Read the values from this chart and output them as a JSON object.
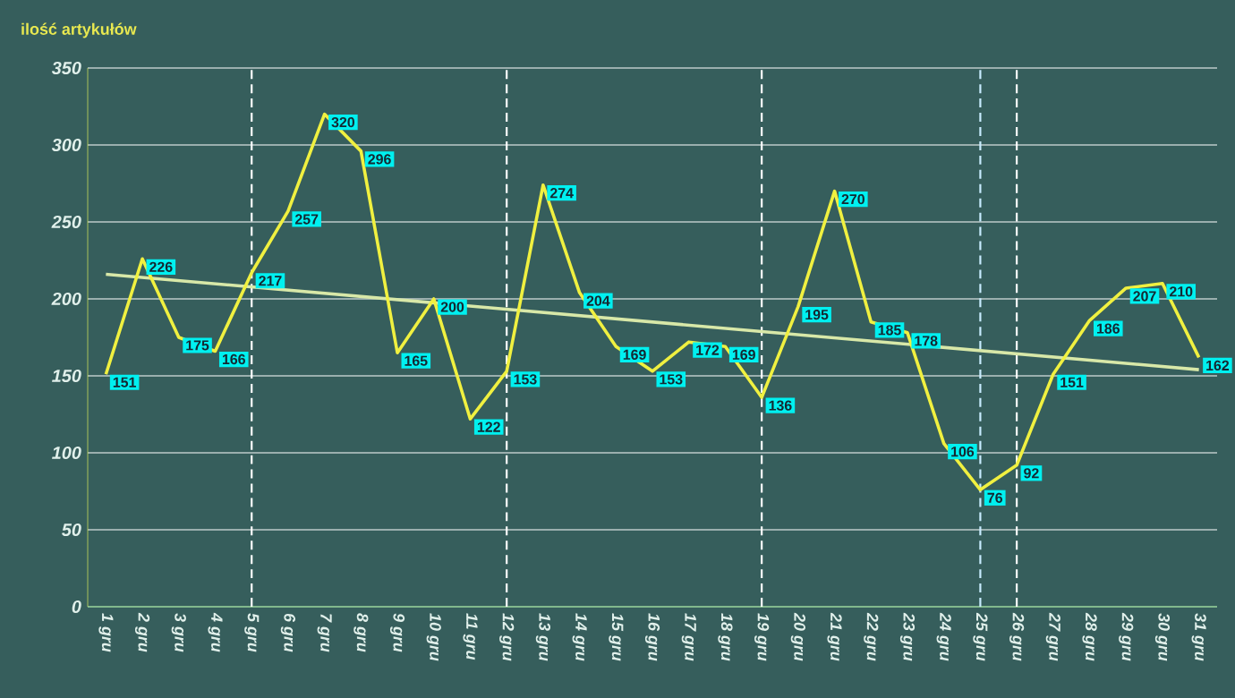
{
  "chart_data": {
    "type": "line",
    "ylabel": "ilość artykułów",
    "grid": "y",
    "categories": [
      "1 gru",
      "2 gru",
      "3 gru",
      "4 gru",
      "5 gru",
      "6 gru",
      "7 gru",
      "8 gru",
      "9 gru",
      "10 gru",
      "11 gru",
      "12 gru",
      "13 gru",
      "14 gru",
      "15 gru",
      "16 gru",
      "17 gru",
      "18 gru",
      "19 gru",
      "20 gru",
      "21 gru",
      "22 gru",
      "23 gru",
      "24 gru",
      "25 gru",
      "26 gru",
      "27 gru",
      "28 gru",
      "29 gru",
      "30 gru",
      "31 gru"
    ],
    "series": [
      {
        "color": "#f0f040",
        "values": [
          151,
          226,
          175,
          166,
          217,
          257,
          320,
          296,
          165,
          200,
          122,
          153,
          274,
          204,
          169,
          153,
          172,
          169,
          136,
          195,
          270,
          185,
          178,
          106,
          76,
          92,
          151,
          186,
          207,
          210,
          162
        ],
        "value_labels": [
          "151",
          "226",
          "175",
          "166",
          "217",
          "257",
          "320",
          "296",
          "165",
          "200",
          "122",
          "153",
          "274",
          "204",
          "169",
          "153",
          "172",
          "169",
          "136",
          "195",
          "270",
          "185",
          "178",
          "106",
          "76",
          "92",
          "151",
          "186",
          "207",
          "210",
          "162"
        ]
      },
      {
        "type": "line",
        "x": [
          "1 gru",
          "31 gru"
        ],
        "values": [
          216,
          154
        ],
        "color": "#d8e8a8"
      }
    ],
    "ylim": [
      0,
      350
    ],
    "yticks": [
      0,
      50,
      100,
      150,
      200,
      250,
      300,
      350
    ],
    "ref_lines": [
      {
        "axis": "x",
        "value": "5 gru",
        "color": "#ffffff",
        "line_style": "dashed"
      },
      {
        "axis": "x",
        "value": "12 gru",
        "color": "#ffffff",
        "line_style": "dashed"
      },
      {
        "axis": "x",
        "value": "19 gru",
        "color": "#ffffff",
        "line_style": "dashed"
      },
      {
        "axis": "x",
        "value": "25 gru",
        "color": "#c8ecff",
        "line_style": "dashed"
      },
      {
        "axis": "x",
        "value": "26 gru",
        "color": "#ffffff",
        "line_style": "dashed"
      }
    ]
  }
}
